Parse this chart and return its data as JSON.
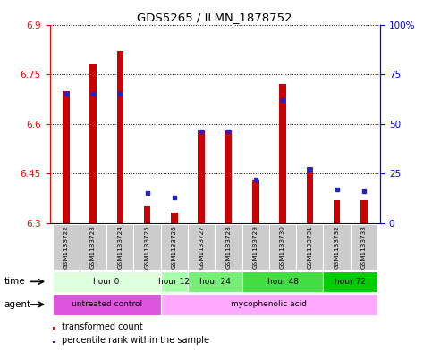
{
  "title": "GDS5265 / ILMN_1878752",
  "samples": [
    "GSM1133722",
    "GSM1133723",
    "GSM1133724",
    "GSM1133725",
    "GSM1133726",
    "GSM1133727",
    "GSM1133728",
    "GSM1133729",
    "GSM1133730",
    "GSM1133731",
    "GSM1133732",
    "GSM1133733"
  ],
  "transformed_counts": [
    6.7,
    6.78,
    6.82,
    6.35,
    6.33,
    6.58,
    6.58,
    6.43,
    6.72,
    6.47,
    6.37,
    6.37
  ],
  "percentile_ranks": [
    65,
    65,
    65,
    15,
    13,
    46,
    46,
    22,
    62,
    27,
    17,
    16
  ],
  "ymin": 6.3,
  "ymax": 6.9,
  "yticks": [
    6.3,
    6.45,
    6.6,
    6.75,
    6.9
  ],
  "ytick_labels": [
    "6.3",
    "6.45",
    "6.6",
    "6.75",
    "6.9"
  ],
  "right_yticks": [
    0,
    25,
    50,
    75,
    100
  ],
  "right_ytick_labels": [
    "0",
    "25",
    "50",
    "75",
    "100%"
  ],
  "bar_color": "#cc0000",
  "blue_color": "#2222cc",
  "time_groups": [
    {
      "label": "hour 0",
      "start": 0,
      "end": 3,
      "color": "#ddffdd"
    },
    {
      "label": "hour 12",
      "start": 4,
      "end": 4,
      "color": "#aaffaa"
    },
    {
      "label": "hour 24",
      "start": 5,
      "end": 6,
      "color": "#77ee77"
    },
    {
      "label": "hour 48",
      "start": 7,
      "end": 9,
      "color": "#44dd44"
    },
    {
      "label": "hour 72",
      "start": 10,
      "end": 11,
      "color": "#00cc00"
    }
  ],
  "agent_groups": [
    {
      "label": "untreated control",
      "start": 0,
      "end": 3,
      "color": "#dd55dd"
    },
    {
      "label": "mycophenolic acid",
      "start": 4,
      "end": 11,
      "color": "#ffaaff"
    }
  ],
  "sample_bg": "#cccccc",
  "bar_width": 0.25
}
